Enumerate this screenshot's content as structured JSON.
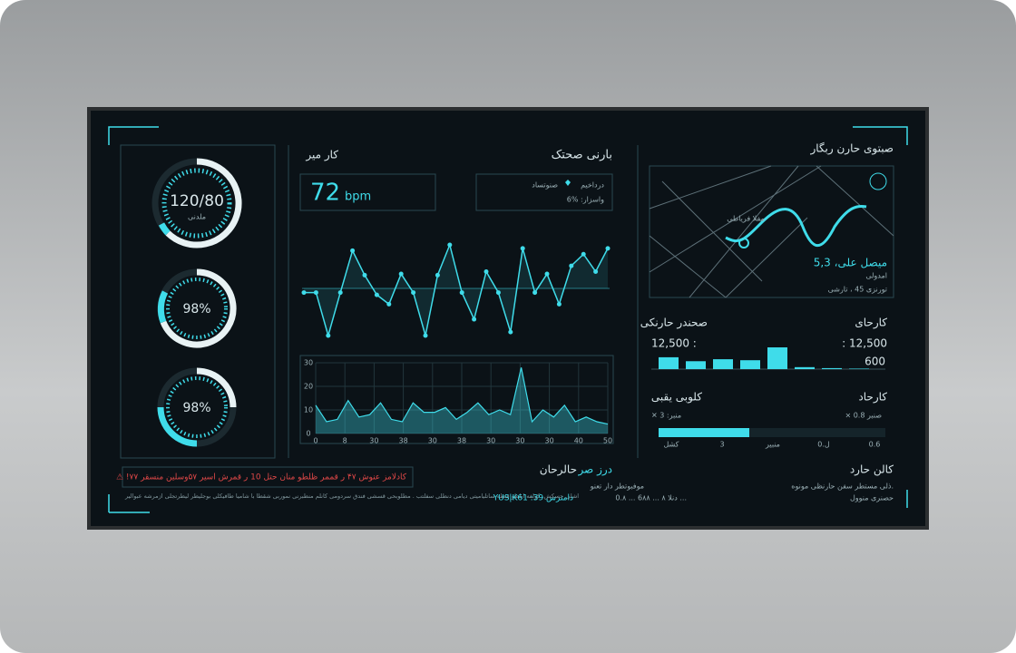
{
  "gauges": [
    {
      "value": "120/80",
      "unit": "ملدنی"
    },
    {
      "value": "98%"
    },
    {
      "value": "98%"
    }
  ],
  "heart_panel": {
    "title": "بارنی صحتک",
    "subtitle": "کار میر",
    "rate": "72",
    "rate_unit": "bpm",
    "status_label": "درداخیم",
    "status_value": "صنوتساد",
    "variance": "6% :واسزار",
    "pulse_values": [
      52,
      52,
      15,
      52,
      88,
      67,
      50,
      42,
      68,
      52,
      15,
      67,
      93,
      52,
      29,
      70,
      52,
      18,
      90,
      52,
      68,
      42,
      75,
      85,
      70,
      90
    ],
    "area_chart": {
      "ylim": [
        0,
        30
      ],
      "yticks": [
        0,
        10,
        20,
        30
      ],
      "x_labels": [
        "0",
        "8",
        "30",
        "38",
        "30",
        "38",
        "30",
        "30",
        "30",
        "40",
        "50"
      ],
      "values": [
        12,
        5,
        6,
        14,
        7,
        8,
        13,
        6,
        5,
        13,
        9,
        9,
        11,
        6,
        9,
        13,
        8,
        10,
        8,
        28,
        5,
        10,
        7,
        12,
        5,
        7,
        5,
        4
      ]
    }
  },
  "activity_panel": {
    "title": "صبتوی حارن ربگار",
    "map_place": "مفلا فریاطی",
    "distance": "5,3 ،میصل علی",
    "duration": "امدولی",
    "pace": "تورنزی 45 ، تارشی",
    "steps_title": "کارحای",
    "steps_subtitle": "صحندر حارنکی",
    "steps_left": ": 12,500",
    "steps_right": "12,500 :",
    "steps_extra": "600",
    "bar_values": [
      12,
      8,
      10,
      9,
      22,
      2,
      1,
      0.5
    ],
    "calories_title": "کارحاد",
    "calories_subtitle": "کلوبی یقبی",
    "calories_left": "✕ 3 :منبر",
    "calories_right": "× صنبر 0.8",
    "calories_axis": [
      "کشل",
      "3",
      "منبیر",
      "0.ل",
      "0.6"
    ]
  },
  "footer": {
    "alert": "⚠ !کادلامز عنوش ۴۷ ر قممر ظلطو منان حتل 10 ر قمرش اسیر ۵۷وسلین منسقر ۷۷",
    "ticker": "اشلی حسکش. کولفه ایلطو فنطه ساتلیامیتی دیامی دنطلی سفلتب . مطلوبحی قسشی فندق سردومی کانلم منطبرنی نموربی شقطا با شامیا طافیکلی بوجلیطر لیطرتجلی ازمرشه عبوالیر",
    "section1_title": "حالرحان",
    "section1_value": "YUS|K61 :39 دامنرس",
    "section2_title": "درز صر",
    "section2_line1": "موفبوتطر دار تعنو",
    "section2_line2": "0.۸ ... 6دنلا ۸ ... ۸۸ ...",
    "section3_title": "کالن حارد",
    "section3_line1": "ذلی مستطر سفن حارنظی مونوه.",
    "section3_line2": "حصنری منوول"
  }
}
